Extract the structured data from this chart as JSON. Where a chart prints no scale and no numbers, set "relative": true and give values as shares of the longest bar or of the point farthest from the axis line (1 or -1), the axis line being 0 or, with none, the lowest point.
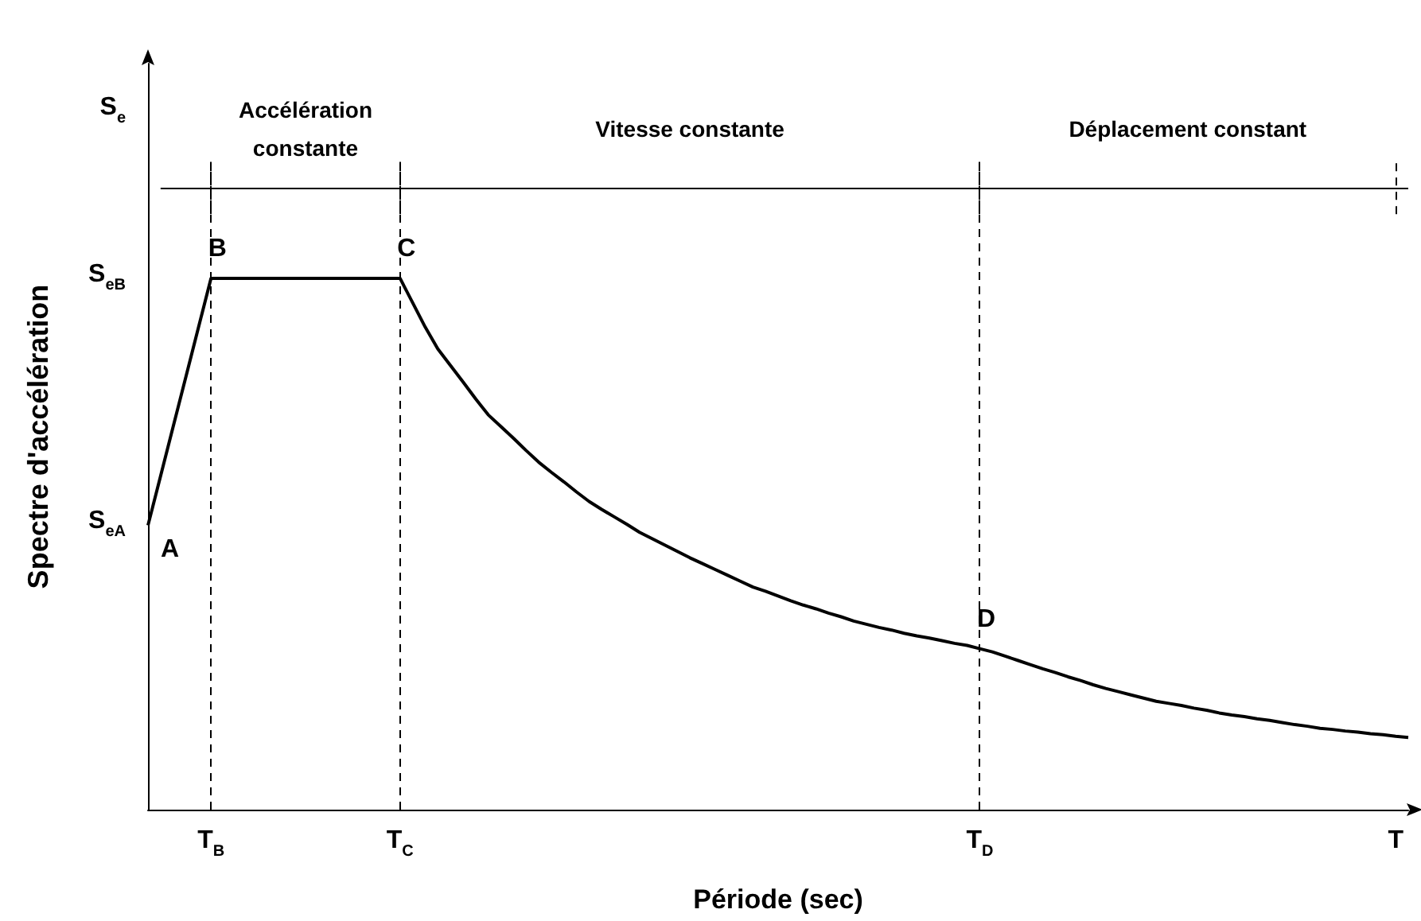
{
  "chart_data": {
    "type": "line",
    "relative": true,
    "xlabel": "Période (sec)",
    "ylabel": "Spectre d'accélération",
    "grid": false,
    "line_style": "solid",
    "categories": [
      null,
      null,
      null,
      null,
      null,
      "T$_{B}$",
      null,
      null,
      null,
      null,
      null,
      null,
      null,
      null,
      null,
      null,
      null,
      null,
      null,
      null,
      "T$_{C}$",
      null,
      null,
      null,
      null,
      null,
      null,
      null,
      null,
      null,
      null,
      null,
      null,
      null,
      null,
      null,
      null,
      null,
      null,
      null,
      null,
      null,
      null,
      null,
      null,
      null,
      null,
      null,
      null,
      null,
      null,
      null,
      null,
      null,
      null,
      null,
      null,
      null,
      null,
      null,
      null,
      null,
      null,
      null,
      null,
      null,
      "T$_{D}$",
      null,
      null,
      null,
      null,
      null,
      null,
      null,
      null,
      null,
      null,
      null,
      null,
      null,
      null,
      null,
      null,
      null,
      null,
      null,
      null,
      null,
      null,
      null,
      null,
      null,
      null,
      null,
      null,
      null,
      null,
      null,
      null,
      "T",
      null
    ],
    "series": [
      {
        "color": "#000000",
        "values": [
          0.535,
          0.628,
          0.721,
          0.814,
          0.907,
          1,
          1,
          1,
          1,
          1,
          1,
          1,
          1,
          1,
          1,
          1,
          1,
          1,
          1,
          1,
          1,
          0.954,
          0.908,
          0.867,
          0.836,
          0.805,
          0.773,
          0.743,
          0.721,
          0.699,
          0.676,
          0.654,
          0.635,
          0.617,
          0.598,
          0.58,
          0.565,
          0.551,
          0.537,
          0.522,
          0.51,
          0.498,
          0.486,
          0.474,
          0.463,
          0.452,
          0.441,
          0.43,
          0.419,
          0.411,
          0.402,
          0.393,
          0.385,
          0.378,
          0.37,
          0.363,
          0.355,
          0.349,
          0.343,
          0.338,
          0.332,
          0.327,
          0.323,
          0.318,
          0.313,
          0.309,
          0.303,
          0.297,
          0.289,
          0.281,
          0.273,
          0.265,
          0.258,
          0.25,
          0.243,
          0.235,
          0.228,
          0.222,
          0.216,
          0.21,
          0.204,
          0.2,
          0.196,
          0.191,
          0.187,
          0.182,
          0.178,
          0.175,
          0.171,
          0.168,
          0.164,
          0.16,
          0.157,
          0.153,
          0.151,
          0.148,
          0.146,
          0.143,
          0.141,
          0.138,
          0.136
        ]
      }
    ],
    "ref_lines": [
      {
        "axis": "x",
        "value": "T$_{B}$",
        "line_style": "dashed",
        "color": "#000000"
      },
      {
        "axis": "x",
        "value": "T$_{C}$",
        "line_style": "dashed",
        "color": "#000000"
      },
      {
        "axis": "x",
        "value": "T$_{D}$",
        "line_style": "dashed",
        "color": "#000000"
      },
      {
        "axis": "y",
        "value": 1.17,
        "line_style": "solid",
        "color": "#000000"
      }
    ],
    "annotations": [
      "A",
      {
        "text": "B",
        "x": "T$_{B}$",
        "y": 1
      },
      {
        "text": "C",
        "x": "T$_{C}$",
        "y": 1
      },
      {
        "text": "D",
        "x": "T$_{D}$",
        "y": 0.303
      },
      "Accélération constante",
      "Vitesse constante",
      "Déplacement constant",
      "S$_{eA}$",
      "S$_{eB}$",
      "S$_{e}$"
    ]
  }
}
